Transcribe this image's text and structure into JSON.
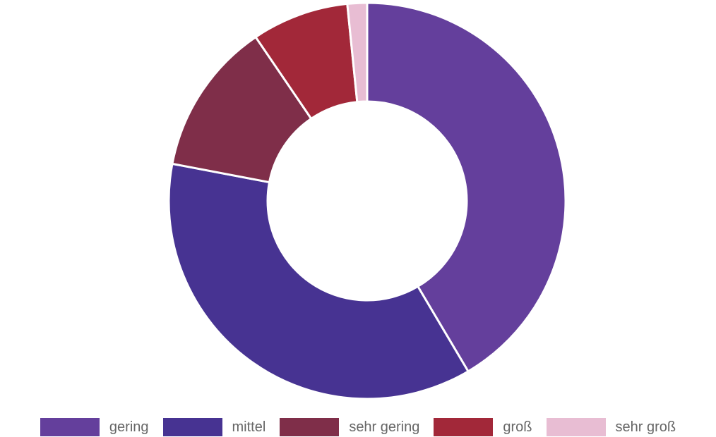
{
  "chart_data": {
    "type": "doughnut",
    "categories": [
      "gering",
      "mittel",
      "sehr gering",
      "groß",
      "sehr groß"
    ],
    "values": [
      41.5,
      36.5,
      12.5,
      7.9,
      1.6
    ],
    "colors": [
      "#643f9c",
      "#473392",
      "#7f2e49",
      "#a22839",
      "#e8bdd3"
    ],
    "start_angle_deg": 0,
    "direction": "clockwise",
    "legend_position": "bottom",
    "title": ""
  }
}
